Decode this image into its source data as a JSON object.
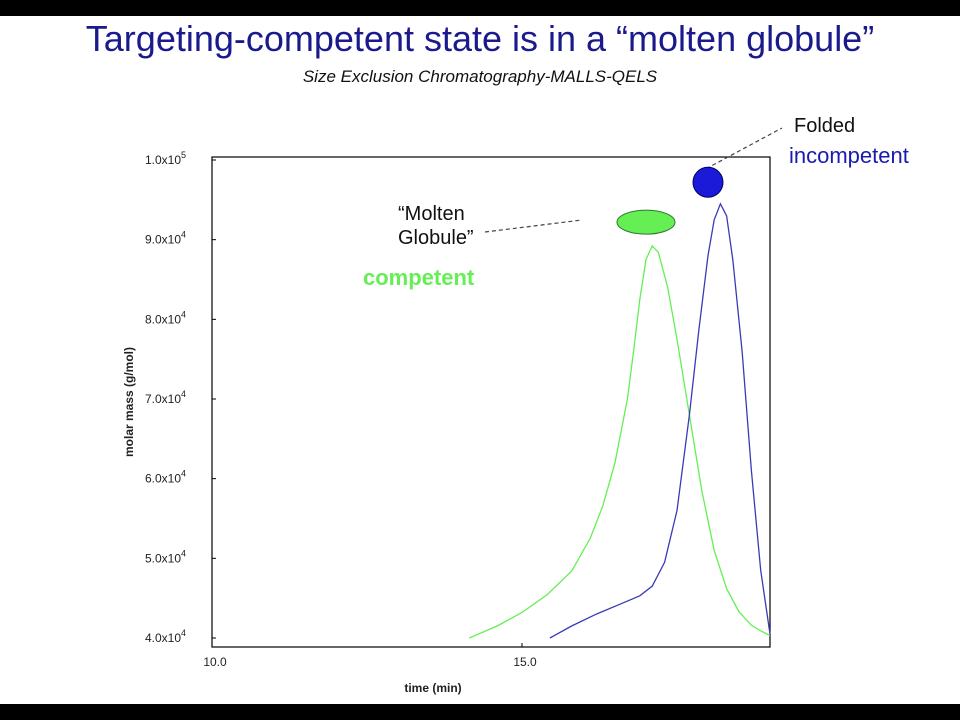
{
  "slide": {
    "title": "Targeting-competent state is in a “molten globule”",
    "subtitle": "Size Exclusion Chromatography-MALLS-QELS"
  },
  "annotations": {
    "molten_line1": "“Molten",
    "molten_line2": "Globule”",
    "competent": "competent",
    "folded": "Folded",
    "incompetent": "incompetent"
  },
  "chart_data": {
    "type": "line",
    "xlabel": "time (min)",
    "ylabel": "molar mass (g/mol)",
    "xlim": [
      10.0,
      19.0
    ],
    "ylim": [
      40000,
      100000
    ],
    "x_ticks": [
      {
        "value": 10.0,
        "label": "10.0"
      },
      {
        "value": 15.0,
        "label": "15.0"
      }
    ],
    "y_ticks": [
      {
        "value": 40000,
        "mant": "4.0x10",
        "exp": "4"
      },
      {
        "value": 50000,
        "mant": "5.0x10",
        "exp": "4"
      },
      {
        "value": 60000,
        "mant": "6.0x10",
        "exp": "4"
      },
      {
        "value": 70000,
        "mant": "7.0x10",
        "exp": "4"
      },
      {
        "value": 80000,
        "mant": "8.0x10",
        "exp": "4"
      },
      {
        "value": 90000,
        "mant": "9.0x10",
        "exp": "4"
      },
      {
        "value": 100000,
        "mant": "1.0x10",
        "exp": "5"
      }
    ],
    "grid": false,
    "series": [
      {
        "id": "competent",
        "color": "#66ee55",
        "x": [
          14.15,
          14.6,
          15.0,
          15.4,
          15.8,
          16.1,
          16.3,
          16.5,
          16.7,
          16.8,
          16.9,
          17.0,
          17.1,
          17.2,
          17.35,
          17.5,
          17.7,
          17.9,
          18.1,
          18.3,
          18.5,
          18.7,
          18.85,
          19.0
        ],
        "y": [
          40000,
          41500,
          43200,
          45400,
          48400,
          52500,
          56500,
          62000,
          70000,
          76000,
          82500,
          87500,
          89200,
          88400,
          84000,
          77500,
          68000,
          58500,
          51000,
          46200,
          43300,
          41600,
          40900,
          40300
        ]
      },
      {
        "id": "incompetent",
        "color": "#3a3ab8",
        "x": [
          15.45,
          15.8,
          16.2,
          16.6,
          16.9,
          17.1,
          17.3,
          17.5,
          17.7,
          17.85,
          18.0,
          18.1,
          18.2,
          18.3,
          18.4,
          18.55,
          18.7,
          18.85,
          19.0
        ],
        "y": [
          40000,
          41500,
          43000,
          44300,
          45300,
          46500,
          49500,
          56000,
          68000,
          78500,
          88000,
          92500,
          94500,
          93000,
          87500,
          76000,
          61000,
          48500,
          40500
        ]
      }
    ],
    "markers": [
      {
        "series": "competent",
        "x": 17.0,
        "y": 92200,
        "color": "#66ee55",
        "shape": "ellipse"
      },
      {
        "series": "incompetent",
        "x": 18.0,
        "y": 97200,
        "color": "#1a1ad8",
        "shape": "circle"
      }
    ]
  }
}
